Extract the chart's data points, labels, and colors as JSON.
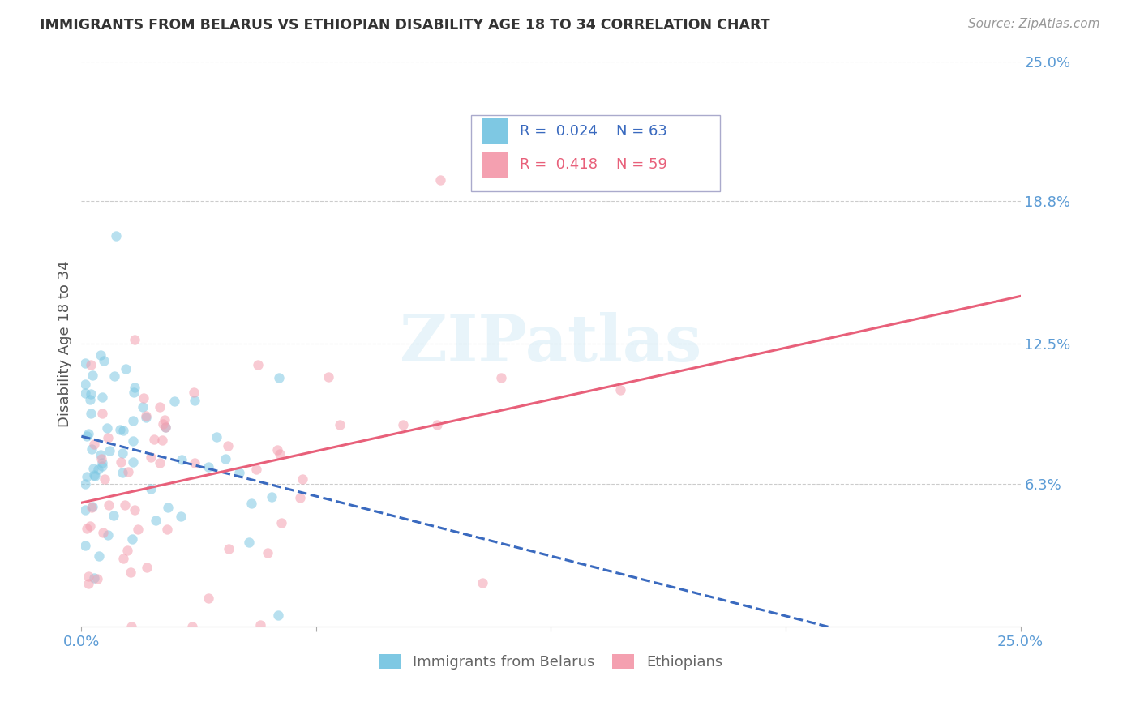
{
  "title": "IMMIGRANTS FROM BELARUS VS ETHIOPIAN DISABILITY AGE 18 TO 34 CORRELATION CHART",
  "source": "Source: ZipAtlas.com",
  "ylabel": "Disability Age 18 to 34",
  "xlim": [
    0.0,
    0.25
  ],
  "ylim": [
    0.0,
    0.25
  ],
  "ytick_positions_right": [
    0.25,
    0.188,
    0.125,
    0.063
  ],
  "ytick_labels_right": [
    "25.0%",
    "18.8%",
    "12.5%",
    "6.3%"
  ],
  "watermark_text": "ZIPatlas",
  "legend_r1": "R =  0.024",
  "legend_n1": "N = 63",
  "legend_r2": "R =  0.418",
  "legend_n2": "N = 59",
  "blue_color": "#7ec8e3",
  "pink_color": "#f4a0b0",
  "blue_line_color": "#3a6abf",
  "pink_line_color": "#e8607a",
  "scatter_alpha": 0.55,
  "scatter_size": 80,
  "axis_label_color": "#5b9bd5",
  "grid_color": "#cccccc",
  "title_color": "#333333",
  "source_color": "#999999",
  "ylabel_color": "#555555",
  "legend_box_color": "#aaaacc",
  "bottom_legend_color": "#666666"
}
